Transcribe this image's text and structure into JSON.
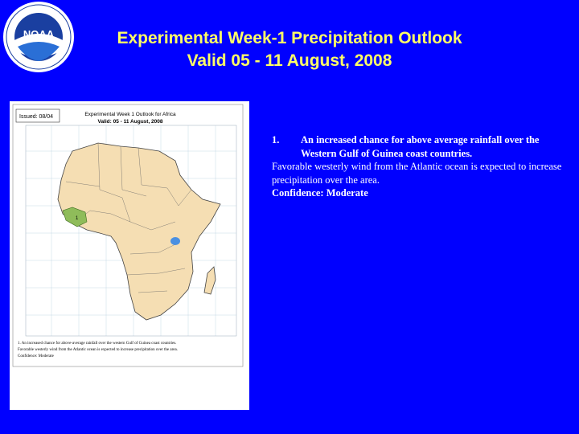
{
  "logo": {
    "name": "noaa-seal",
    "text": "NOAA",
    "ring_text": "NATIONAL OCEANIC AND ATMOSPHERIC ADMINISTRATION · U.S. DEPARTMENT OF COMMERCE"
  },
  "title": {
    "line1": "Experimental Week-1 Precipitation Outlook",
    "line2": "Valid 05 - 11 August, 2008"
  },
  "map": {
    "issued": "Issued: 08/04",
    "title_line1": "Experimental Week 1 Outlook for Africa",
    "title_line2": "Valid: 05 - 11 August, 2008",
    "caption_line1": "1. An increased chance for above-average rainfall over the western Gulf of Guinea coast countries.",
    "caption_line2": "Favorable westerly wind from the Atlantic ocean is expected to increase precipitation over the area.",
    "caption_line3": "Confidence: Moderate",
    "highlight_region_label": "1"
  },
  "body": {
    "point_number": "1.",
    "point_text": "An increased chance for above average rainfall over the Western Gulf of Guinea coast countries.",
    "detail": "Favorable westerly wind from the Atlantic ocean is expected to increase precipitation over the area.",
    "confidence": "Confidence: Moderate"
  },
  "colors": {
    "background": "#0000ff",
    "title": "#ffff66",
    "land": "#f5deb3",
    "highlight": "#8fbc5a"
  }
}
